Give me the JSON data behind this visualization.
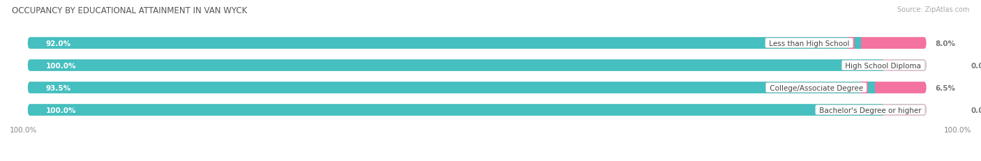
{
  "title": "OCCUPANCY BY EDUCATIONAL ATTAINMENT IN VAN WYCK",
  "source": "Source: ZipAtlas.com",
  "categories": [
    "Less than High School",
    "High School Diploma",
    "College/Associate Degree",
    "Bachelor's Degree or higher"
  ],
  "owner_pct": [
    92.0,
    100.0,
    93.5,
    100.0
  ],
  "renter_pct": [
    8.0,
    0.0,
    6.5,
    0.0
  ],
  "owner_color": "#45BFBF",
  "renter_color": "#F472A0",
  "renter_color_zero": "#F8BBCF",
  "bg_color": "#FFFFFF",
  "bar_bg_color": "#E0E0E0",
  "title_fontsize": 8.5,
  "source_fontsize": 7,
  "label_fontsize": 7.5,
  "pct_fontsize": 7.5,
  "bar_height": 0.52,
  "bar_rounding": 0.26,
  "figsize": [
    14.06,
    2.32
  ],
  "dpi": 100,
  "xlim_max": 105
}
